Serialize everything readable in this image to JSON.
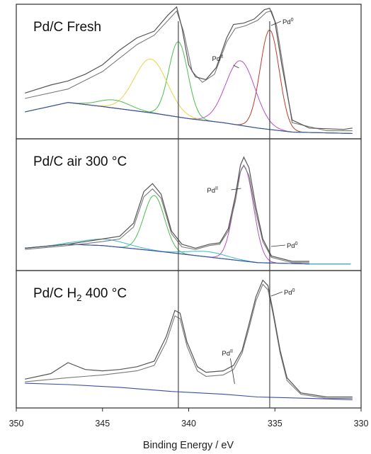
{
  "chart_data": {
    "type": "line",
    "xlabel": "Binding Energy / eV",
    "xlim": [
      350,
      330
    ],
    "x_reversed": true,
    "x_ticks": [
      350,
      345,
      340,
      335,
      330
    ],
    "x_tick_labels": [
      "350",
      "345",
      "340",
      "335",
      "330"
    ],
    "reference_lines_eV": [
      340.6,
      335.3
    ],
    "ylabel": "",
    "y_scale": "arbitrary intensity (normalized per panel, 0 = bottom of panel, 1 = top)",
    "colors": {
      "measured": "#555555",
      "envelope": "#7a7a7a",
      "background": "#3b4ea6",
      "pd0": "#c0392b",
      "pd2": "#b84fc4",
      "pd3d3_main": "#4cbf4c",
      "pd3d3_ox": "#e0d84a",
      "satellite": "#3fb8c8",
      "residual": "#c9a23c"
    },
    "panels": [
      {
        "title_text": "Pd/C Fresh",
        "annotations": [
          {
            "text": "Pd0",
            "base": "Pd",
            "sup": "0",
            "x": 335.3
          },
          {
            "text": "PdII",
            "base": "Pd",
            "sup": "II",
            "x": 337.0
          }
        ],
        "background": [
          [
            349.5,
            0.2
          ],
          [
            347,
            0.27
          ],
          [
            345,
            0.24
          ],
          [
            342,
            0.19
          ],
          [
            340,
            0.15
          ],
          [
            338,
            0.12
          ],
          [
            336,
            0.08
          ],
          [
            334,
            0.05
          ],
          [
            330.5,
            0.04
          ]
        ],
        "components": [
          {
            "color": "#c0392b",
            "center": 335.3,
            "height": 0.74,
            "width": 0.55
          },
          {
            "color": "#b84fc4",
            "center": 337.0,
            "height": 0.48,
            "width": 0.85
          },
          {
            "color": "#4cbf4c",
            "center": 340.6,
            "height": 0.56,
            "width": 0.55
          },
          {
            "color": "#e0d84a",
            "center": 342.2,
            "height": 0.4,
            "width": 0.95
          },
          {
            "color": "#4cbf4c",
            "center": 344.3,
            "height": 0.06,
            "width": 0.9
          }
        ],
        "measured": [
          [
            349.5,
            0.34
          ],
          [
            348,
            0.4
          ],
          [
            347,
            0.43
          ],
          [
            346,
            0.48
          ],
          [
            345,
            0.55
          ],
          [
            344,
            0.66
          ],
          [
            343,
            0.75
          ],
          [
            342,
            0.8
          ],
          [
            341.2,
            0.92
          ],
          [
            340.7,
            0.98
          ],
          [
            340.4,
            0.83
          ],
          [
            340,
            0.55
          ],
          [
            339.6,
            0.46
          ],
          [
            339,
            0.44
          ],
          [
            338.4,
            0.53
          ],
          [
            337.8,
            0.75
          ],
          [
            337.4,
            0.85
          ],
          [
            336.8,
            0.86
          ],
          [
            336.2,
            0.89
          ],
          [
            335.6,
            0.96
          ],
          [
            335.3,
            0.97
          ],
          [
            335.0,
            0.87
          ],
          [
            334.6,
            0.55
          ],
          [
            334,
            0.14
          ],
          [
            333,
            0.08
          ],
          [
            331,
            0.07
          ],
          [
            330.5,
            0.08
          ]
        ],
        "envelope": [
          [
            349.5,
            0.3
          ],
          [
            347,
            0.37
          ],
          [
            345,
            0.5
          ],
          [
            343,
            0.7
          ],
          [
            342,
            0.77
          ],
          [
            341.2,
            0.88
          ],
          [
            340.7,
            0.95
          ],
          [
            340.3,
            0.8
          ],
          [
            339.8,
            0.5
          ],
          [
            339.2,
            0.42
          ],
          [
            338.5,
            0.48
          ],
          [
            337.8,
            0.72
          ],
          [
            337.3,
            0.82
          ],
          [
            336.7,
            0.84
          ],
          [
            336,
            0.88
          ],
          [
            335.5,
            0.94
          ],
          [
            335.2,
            0.95
          ],
          [
            334.9,
            0.84
          ],
          [
            334.5,
            0.52
          ],
          [
            334,
            0.12
          ],
          [
            332,
            0.06
          ],
          [
            330.5,
            0.06
          ]
        ]
      },
      {
        "title_text": "Pd/C air 300 °C",
        "annotations": [
          {
            "text": "PdII",
            "base": "Pd",
            "sup": "II",
            "x": 336.8
          },
          {
            "text": "Pd0",
            "base": "Pd",
            "sup": "0",
            "x": 335.3
          }
        ],
        "background": [
          [
            349.5,
            0.17
          ],
          [
            347,
            0.2
          ],
          [
            345,
            0.19
          ],
          [
            342,
            0.15
          ],
          [
            340,
            0.12
          ],
          [
            338,
            0.09
          ],
          [
            336,
            0.06
          ],
          [
            333,
            0.05
          ]
        ],
        "components": [
          {
            "color": "#b84fc4",
            "center": 336.8,
            "height": 0.72,
            "width": 0.55
          },
          {
            "color": "#4cbf4c",
            "center": 342.0,
            "height": 0.42,
            "width": 0.6
          },
          {
            "color": "#3fb8c8",
            "center": 344.8,
            "height": 0.05,
            "width": 1.3
          },
          {
            "color": "#3fb8c8",
            "center": 338.9,
            "height": 0.04,
            "width": 1.1
          }
        ],
        "measured": [
          [
            349.5,
            0.17
          ],
          [
            347,
            0.2
          ],
          [
            345,
            0.24
          ],
          [
            344,
            0.26
          ],
          [
            343.2,
            0.36
          ],
          [
            342.6,
            0.6
          ],
          [
            342.1,
            0.66
          ],
          [
            341.6,
            0.58
          ],
          [
            341.0,
            0.3
          ],
          [
            340.4,
            0.2
          ],
          [
            339.6,
            0.17
          ],
          [
            338.8,
            0.2
          ],
          [
            338.2,
            0.21
          ],
          [
            337.7,
            0.32
          ],
          [
            337.3,
            0.56
          ],
          [
            337.0,
            0.8
          ],
          [
            336.8,
            0.86
          ],
          [
            336.5,
            0.78
          ],
          [
            336.1,
            0.48
          ],
          [
            335.7,
            0.24
          ],
          [
            335.2,
            0.11
          ],
          [
            334,
            0.07
          ],
          [
            333,
            0.07
          ]
        ],
        "envelope": [
          [
            349.5,
            0.16
          ],
          [
            347,
            0.19
          ],
          [
            345,
            0.22
          ],
          [
            344,
            0.24
          ],
          [
            343.2,
            0.33
          ],
          [
            342.6,
            0.56
          ],
          [
            342.1,
            0.62
          ],
          [
            341.6,
            0.55
          ],
          [
            341.0,
            0.28
          ],
          [
            340.4,
            0.18
          ],
          [
            339.6,
            0.16
          ],
          [
            338.8,
            0.19
          ],
          [
            338.2,
            0.2
          ],
          [
            337.7,
            0.3
          ],
          [
            337.3,
            0.52
          ],
          [
            337.0,
            0.75
          ],
          [
            336.8,
            0.8
          ],
          [
            336.5,
            0.72
          ],
          [
            336.1,
            0.44
          ],
          [
            335.7,
            0.22
          ],
          [
            335.2,
            0.1
          ],
          [
            334,
            0.06
          ],
          [
            333,
            0.06
          ]
        ]
      },
      {
        "title_text": "Pd/C H2 400 °C",
        "title_parts": {
          "a": "Pd/C H",
          "sub": "2",
          "b": " 400 °C"
        },
        "annotations": [
          {
            "text": "Pd0",
            "base": "Pd",
            "sup": "0",
            "x": 335.3
          },
          {
            "text": "PdII",
            "base": "Pd",
            "sup": "II",
            "x": 337.5
          }
        ],
        "background": [
          [
            349.5,
            0.18
          ],
          [
            347,
            0.17
          ],
          [
            344,
            0.15
          ],
          [
            341,
            0.12
          ],
          [
            338,
            0.1
          ],
          [
            336,
            0.08
          ],
          [
            333,
            0.07
          ],
          [
            330.5,
            0.06
          ]
        ],
        "components": [],
        "measured": [
          [
            349.5,
            0.21
          ],
          [
            348,
            0.25
          ],
          [
            347,
            0.33
          ],
          [
            346,
            0.28
          ],
          [
            345,
            0.27
          ],
          [
            344,
            0.28
          ],
          [
            343,
            0.3
          ],
          [
            342,
            0.34
          ],
          [
            341.3,
            0.52
          ],
          [
            340.8,
            0.71
          ],
          [
            340.5,
            0.69
          ],
          [
            340.1,
            0.48
          ],
          [
            339.5,
            0.3
          ],
          [
            339,
            0.26
          ],
          [
            338,
            0.27
          ],
          [
            337.4,
            0.31
          ],
          [
            336.9,
            0.42
          ],
          [
            336.5,
            0.61
          ],
          [
            336.1,
            0.81
          ],
          [
            335.7,
            0.93
          ],
          [
            335.4,
            0.89
          ],
          [
            335.1,
            0.7
          ],
          [
            334.7,
            0.42
          ],
          [
            334.3,
            0.22
          ],
          [
            333.5,
            0.11
          ],
          [
            332,
            0.08
          ],
          [
            330.5,
            0.08
          ]
        ],
        "envelope": [
          [
            349.5,
            0.19
          ],
          [
            347,
            0.22
          ],
          [
            345,
            0.24
          ],
          [
            343,
            0.27
          ],
          [
            342,
            0.31
          ],
          [
            341.3,
            0.48
          ],
          [
            340.8,
            0.67
          ],
          [
            340.5,
            0.65
          ],
          [
            340.1,
            0.45
          ],
          [
            339.5,
            0.27
          ],
          [
            339,
            0.23
          ],
          [
            338,
            0.24
          ],
          [
            337.4,
            0.28
          ],
          [
            336.9,
            0.4
          ],
          [
            336.5,
            0.58
          ],
          [
            336.1,
            0.78
          ],
          [
            335.7,
            0.9
          ],
          [
            335.4,
            0.86
          ],
          [
            335.1,
            0.68
          ],
          [
            334.7,
            0.4
          ],
          [
            334.3,
            0.2
          ],
          [
            333.5,
            0.1
          ],
          [
            332,
            0.07
          ],
          [
            330.5,
            0.07
          ]
        ]
      }
    ]
  }
}
